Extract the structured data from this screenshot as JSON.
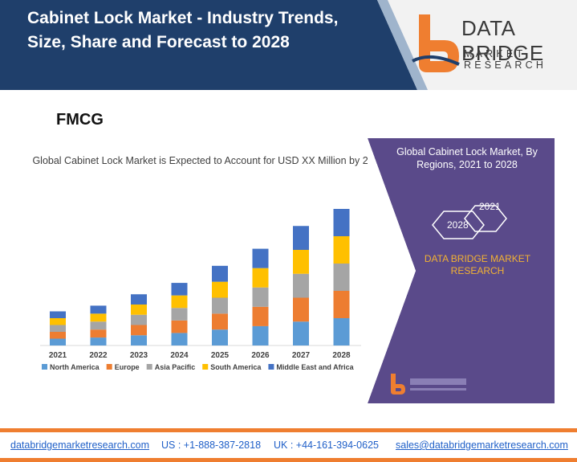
{
  "header": {
    "title": "Cabinet Lock Market - Industry Trends, Size, Share and Forecast to 2028",
    "brand_name": "DATA BRIDGE",
    "brand_sub": "MARKET RESEARCH"
  },
  "section_label": "FMCG",
  "chart_data": {
    "type": "bar",
    "stacked": true,
    "title": "Global Cabinet Lock Market is Expected to Account for USD XX Million by 2028",
    "categories": [
      "2021",
      "2022",
      "2023",
      "2024",
      "2025",
      "2026",
      "2027",
      "2028"
    ],
    "series": [
      {
        "name": "North America",
        "color": "#5b9bd5",
        "values": [
          6,
          7,
          9,
          11,
          14,
          17,
          21,
          24
        ]
      },
      {
        "name": "Europe",
        "color": "#ed7d31",
        "values": [
          6,
          7,
          9,
          11,
          14,
          17,
          21,
          24
        ]
      },
      {
        "name": "Asia Pacific",
        "color": "#a5a5a5",
        "values": [
          6,
          7,
          9,
          11,
          14,
          17,
          21,
          24
        ]
      },
      {
        "name": "South America",
        "color": "#ffc000",
        "values": [
          6,
          7,
          9,
          11,
          14,
          17,
          21,
          24
        ]
      },
      {
        "name": "Middle East and Africa",
        "color": "#4472c4",
        "values": [
          6,
          7,
          9,
          11,
          14,
          17,
          21,
          24
        ]
      }
    ],
    "ylim": [
      0,
      120
    ],
    "legend": "bottom",
    "grid": false
  },
  "panel": {
    "title": "Global Cabinet Lock Market, By Regions, 2021 to 2028",
    "hex_a": "2021",
    "hex_b": "2028",
    "subtitle": "DATA BRIDGE MARKET RESEARCH"
  },
  "footer": {
    "website": "databridgemarketresearch.com",
    "us_phone": "US : +1-888-387-2818",
    "uk_phone": "UK : +44-161-394-0625",
    "email": "sales@databridgemarketresearch.com"
  },
  "colors": {
    "header_blue": "#1f3f6b",
    "panel_purple": "#5a4a8a",
    "accent_orange": "#ef7e30"
  }
}
